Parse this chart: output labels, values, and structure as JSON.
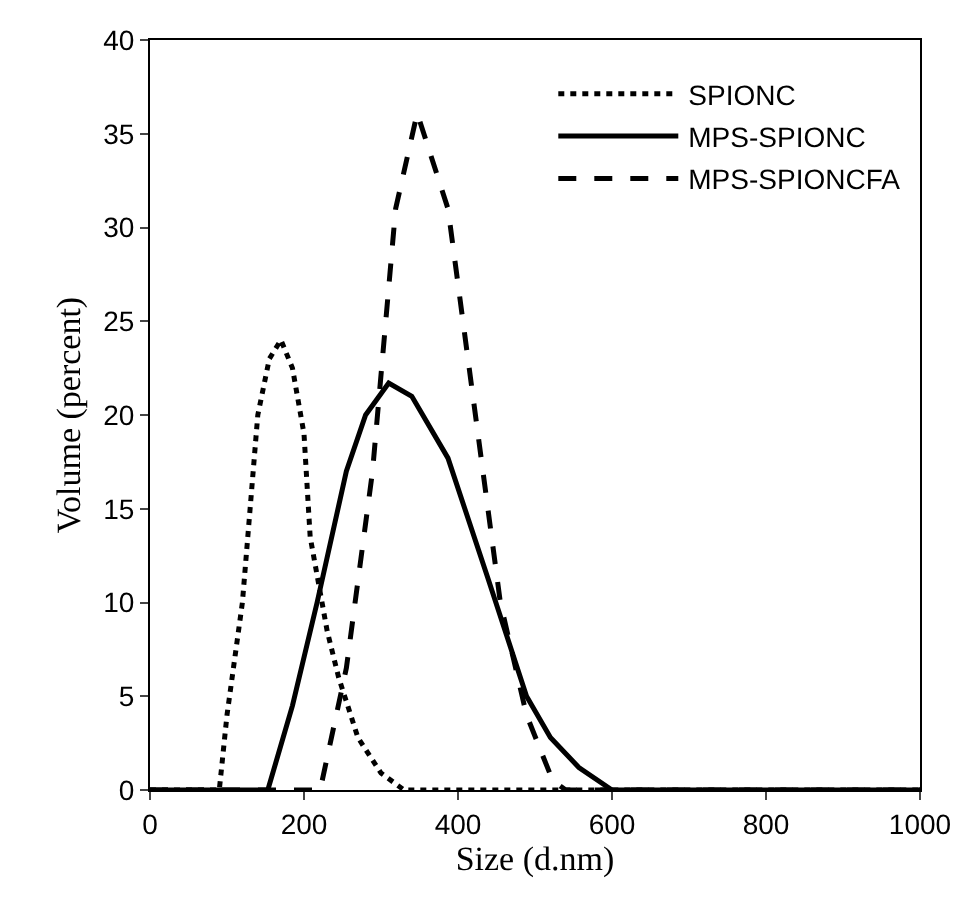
{
  "chart_data": {
    "type": "line",
    "xlabel": "Size (d.nm)",
    "ylabel": "Volume (percent)",
    "xlim": [
      0,
      1000
    ],
    "ylim": [
      0,
      40
    ],
    "xticks": [
      0,
      200,
      400,
      600,
      800,
      1000
    ],
    "yticks": [
      0,
      5,
      10,
      15,
      20,
      25,
      30,
      35,
      40
    ],
    "legend": "top right",
    "marker": "none",
    "series": [
      {
        "name": "SPIONC",
        "color": "#000000",
        "line_style": "dotted",
        "x": [
          0,
          90,
          100,
          120,
          140,
          155,
          170,
          185,
          200,
          208,
          230,
          245,
          270,
          300,
          330,
          1000
        ],
        "values": [
          0,
          0,
          4,
          10,
          20,
          23,
          24,
          22.5,
          19,
          13.5,
          8.5,
          6,
          2.8,
          0.9,
          0,
          0
        ]
      },
      {
        "name": "MPS-SPIONC",
        "color": "#000000",
        "line_style": "solid",
        "x": [
          0,
          153,
          185,
          217,
          255,
          280,
          310,
          340,
          387,
          438,
          489,
          520,
          557,
          600,
          1000
        ],
        "values": [
          0,
          0,
          4.5,
          10,
          17,
          20,
          21.7,
          21,
          17.7,
          11.4,
          5,
          2.8,
          1.2,
          0,
          0
        ]
      },
      {
        "name": "MPS-SPIONCFA",
        "color": "#000000",
        "line_style": "dashed",
        "x": [
          0,
          221,
          255,
          289,
          319,
          347,
          387,
          421,
          455,
          489,
          523,
          540,
          1000
        ],
        "values": [
          0,
          0,
          6.5,
          17,
          31,
          36.1,
          31,
          20.5,
          10,
          4,
          0.5,
          0,
          0
        ]
      }
    ]
  }
}
